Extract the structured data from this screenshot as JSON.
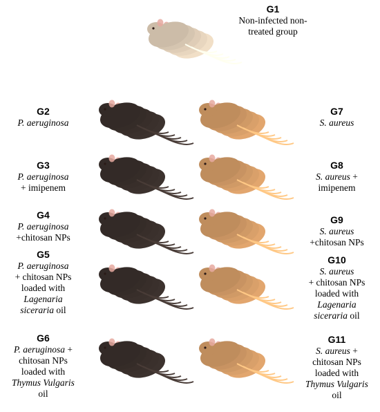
{
  "groups": {
    "g1": {
      "id": "G1",
      "lines": [
        [
          "Non-infected non-"
        ],
        [
          "treated group"
        ]
      ]
    },
    "g2": {
      "id": "G2",
      "lines": [
        [
          "P. aeruginosa"
        ]
      ]
    },
    "g3": {
      "id": "G3",
      "lines": [
        [
          "P. aeruginosa"
        ],
        [
          "+ imipenem"
        ]
      ]
    },
    "g4": {
      "id": "G4",
      "lines": [
        [
          "P. aeruginosa"
        ],
        [
          "+chitosan NPs"
        ]
      ]
    },
    "g5": {
      "id": "G5",
      "lines": [
        [
          "P. aeruginosa"
        ],
        [
          "+ chitosan NPs"
        ],
        [
          "loaded with"
        ],
        [
          "Lagenaria"
        ],
        [
          "siceraria oil"
        ]
      ]
    },
    "g6": {
      "id": "G6",
      "lines": [
        [
          "P. aeruginosa +"
        ],
        [
          "chitosan NPs"
        ],
        [
          "loaded with"
        ],
        [
          "Thymus Vulgaris"
        ],
        [
          "oil"
        ]
      ]
    },
    "g7": {
      "id": "G7",
      "lines": [
        [
          "S. aureus"
        ]
      ]
    },
    "g8": {
      "id": "G8",
      "lines": [
        [
          "S. aureus +"
        ],
        [
          "imipenem"
        ]
      ]
    },
    "g9": {
      "id": "G9",
      "lines": [
        [
          "S. aureus"
        ],
        [
          "+chitosan NPs"
        ]
      ]
    },
    "g10": {
      "id": "G10",
      "lines": [
        [
          "S. aureus"
        ],
        [
          "+ chitosan NPs"
        ],
        [
          "loaded with"
        ],
        [
          "Lagenaria"
        ],
        [
          "siceraria oil"
        ]
      ]
    },
    "g11": {
      "id": "G11",
      "lines": [
        [
          "S. aureus +"
        ],
        [
          "chitosan NPs"
        ],
        [
          "loaded with"
        ],
        [
          "Thymus Vulgaris"
        ],
        [
          "oil"
        ]
      ]
    }
  },
  "italic_words": [
    "P. aeruginosa",
    "S. aureus",
    "Lagenaria",
    "siceraria",
    "Thymus Vulgaris"
  ],
  "colors": {
    "control_mice": "#e8d6bf",
    "pseudomonas_mice": "#3a302c",
    "staph_mice": "#d9a06a",
    "ear_pink": "#e6a9a0"
  }
}
